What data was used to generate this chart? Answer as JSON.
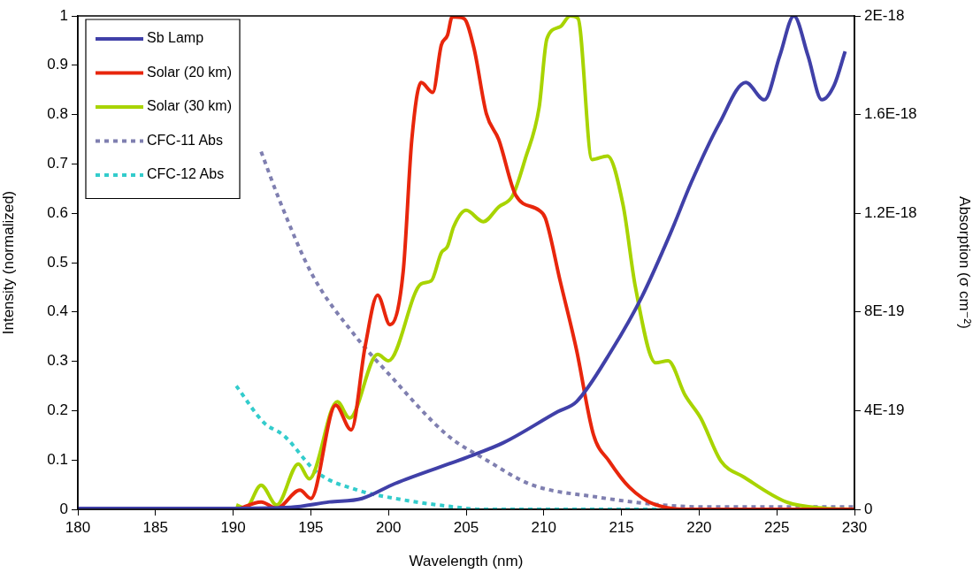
{
  "chart_data": {
    "type": "line",
    "xlabel": "Wavelength (nm)",
    "ylabel": "Intensity (normalized)",
    "y2label": "Absorption (σ cm⁻²)",
    "xlim": [
      180,
      230
    ],
    "xticks": [
      180,
      185,
      190,
      195,
      200,
      205,
      210,
      215,
      220,
      225,
      230
    ],
    "ylim": [
      0,
      1
    ],
    "yticks": [
      0,
      0.1,
      0.2,
      0.3,
      0.4,
      0.5,
      0.6,
      0.7,
      0.8,
      0.9,
      1
    ],
    "y2lim": [
      0,
      2e-18
    ],
    "y2ticks": [
      0,
      {
        "value": 4e-19,
        "label": "4E-19"
      },
      {
        "value": 8e-19,
        "label": "8E-19"
      },
      {
        "value": 1.2e-18,
        "label": "1.2E-18"
      },
      {
        "value": 1.6e-18,
        "label": "1.6E-18"
      },
      {
        "value": 2e-18,
        "label": "2E-18"
      }
    ],
    "grid": false,
    "legend": "top left",
    "marker": "none",
    "series": [
      {
        "name": "Sb Lamp",
        "color": "#4040a8",
        "line_style": "solid",
        "x": [
          180,
          185,
          190,
          193.7,
          196.2,
          198.3,
          200.4,
          205.1,
          207.4,
          210.9,
          212.1,
          214.4,
          216.3,
          218.2,
          219.5,
          221.3,
          223.0,
          224.2,
          225.2,
          226.1,
          227.0,
          227.9,
          228.7,
          229.4
        ],
        "values": [
          0.002,
          0.002,
          0.002,
          0.004,
          0.015,
          0.022,
          0.052,
          0.106,
          0.135,
          0.198,
          0.218,
          0.324,
          0.43,
          0.563,
          0.663,
          0.782,
          0.865,
          0.83,
          0.92,
          1.0,
          0.92,
          0.83,
          0.86,
          0.928
        ]
      },
      {
        "name": "Solar (20 km)",
        "color": "#e8260c",
        "line_style": "solid",
        "x": [
          190.3,
          191.8,
          192.8,
          194.3,
          195.0,
          196.6,
          197.6,
          198.5,
          199.3,
          200.1,
          200.95,
          201.5,
          202.1,
          202.85,
          203.4,
          203.8,
          204.1,
          204.85,
          205.5,
          206.3,
          207.1,
          208.2,
          209.7,
          210.1,
          211.05,
          212.1,
          213.2,
          214.2,
          215.5,
          217.2,
          219.7,
          225,
          230
        ],
        "values": [
          0,
          0.015,
          0.002,
          0.039,
          0.022,
          0.211,
          0.161,
          0.331,
          0.434,
          0.374,
          0.483,
          0.749,
          0.865,
          0.845,
          0.941,
          0.961,
          0.998,
          0.995,
          0.935,
          0.802,
          0.749,
          0.636,
          0.606,
          0.59,
          0.463,
          0.324,
          0.151,
          0.098,
          0.045,
          0.009,
          0,
          0,
          0
        ]
      },
      {
        "name": "Solar (30 km)",
        "color": "#a8d400",
        "line_style": "solid",
        "x": [
          190.2,
          190.8,
          191.8,
          192.8,
          194.2,
          194.9,
          196.7,
          197.5,
          199.3,
          200.0,
          202.1,
          202.75,
          203.4,
          203.8,
          204.2,
          205.0,
          206.1,
          207.1,
          208.0,
          208.8,
          209.7,
          210.2,
          211.05,
          211.7,
          212.2,
          213.1,
          214.1,
          215.1,
          215.9,
          217.2,
          218.0,
          219.1,
          220.1,
          221.4,
          222.9,
          225.6,
          228.1,
          230
        ],
        "values": [
          0.009,
          0.002,
          0.049,
          0.009,
          0.092,
          0.062,
          0.218,
          0.185,
          0.314,
          0.301,
          0.457,
          0.463,
          0.52,
          0.533,
          0.573,
          0.606,
          0.583,
          0.613,
          0.636,
          0.71,
          0.815,
          0.954,
          0.978,
          1.0,
          0.995,
          0.709,
          0.716,
          0.617,
          0.45,
          0.297,
          0.301,
          0.231,
          0.185,
          0.098,
          0.065,
          0.015,
          0.002,
          0
        ]
      },
      {
        "name": "CFC-11 Abs",
        "color": "#7f7fb0",
        "line_style": "dashed",
        "axis": "y2",
        "x": [
          191.8,
          193.0,
          195.1,
          197.9,
          200.0,
          203.8,
          206.3,
          209.2,
          213.4,
          217.2,
          220,
          225,
          230
        ],
        "values": [
          1.45e-18,
          1.25e-18,
          9.5e-19,
          7e-19,
          5.5e-19,
          3e-19,
          2e-19,
          1e-19,
          5e-20,
          2e-20,
          1e-20,
          1e-20,
          1e-20
        ]
      },
      {
        "name": "CFC-12 Abs",
        "color": "#33cccc",
        "line_style": "dashed",
        "axis": "y2",
        "x": [
          190.2,
          192.0,
          193.25,
          195.4,
          197.9,
          200.8,
          204.2,
          206,
          210,
          220,
          230
        ],
        "values": [
          5e-19,
          3.5e-19,
          3e-19,
          1.5e-19,
          8e-20,
          4e-20,
          1e-20,
          0,
          0,
          0,
          0
        ]
      }
    ]
  }
}
